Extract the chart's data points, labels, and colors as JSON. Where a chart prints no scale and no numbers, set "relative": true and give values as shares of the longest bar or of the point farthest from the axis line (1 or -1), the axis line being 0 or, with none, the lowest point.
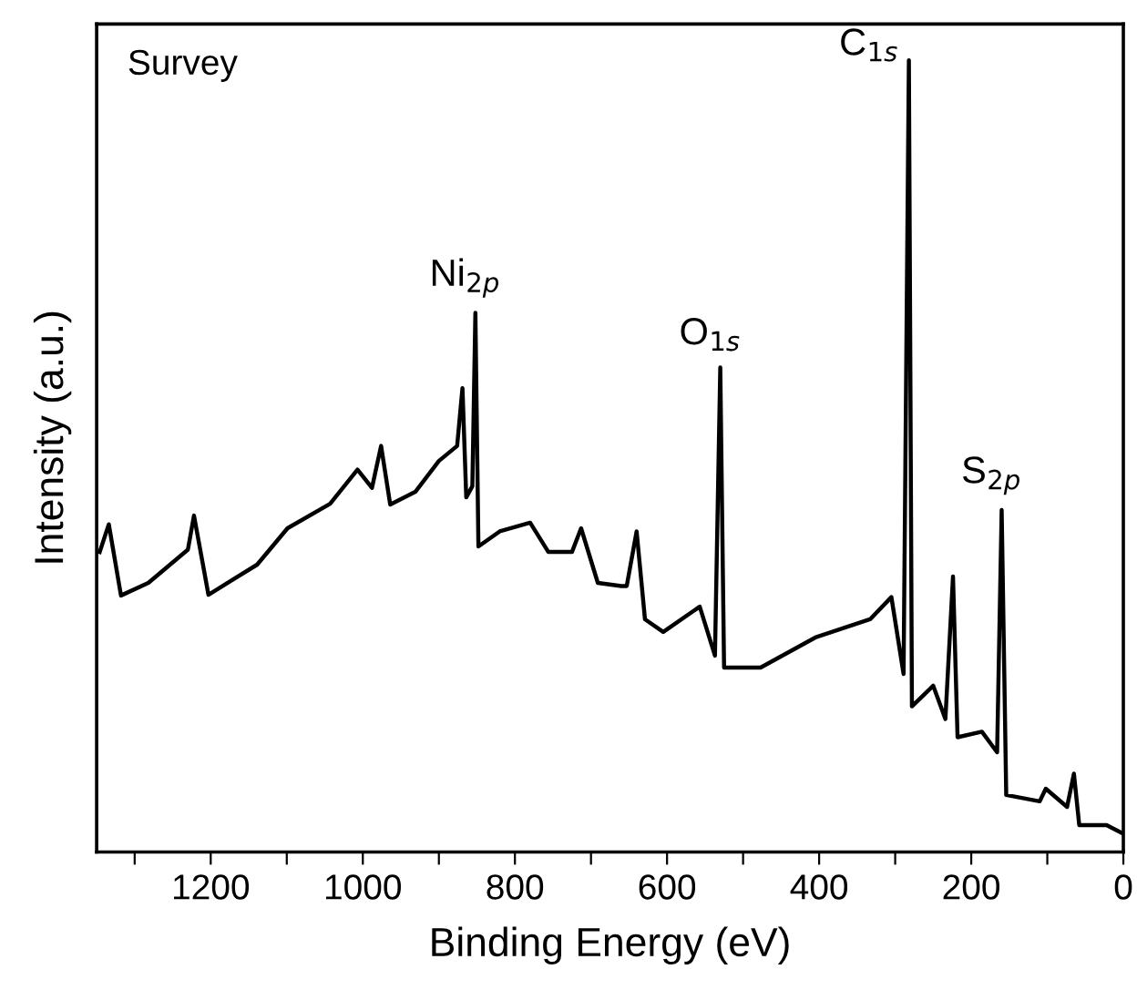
{
  "chart_data": {
    "type": "line",
    "relative": true,
    "xlabel": "Binding Energy (eV)",
    "ylabel": "Intensity (a.u.)",
    "xlim": [
      1350,
      0
    ],
    "xticks": [
      {
        "value": 1300,
        "label": null
      },
      1200,
      {
        "value": 1100,
        "label": null
      },
      1000,
      {
        "value": 900,
        "label": null
      },
      800,
      {
        "value": 700,
        "label": null
      },
      600,
      {
        "value": 500,
        "label": null
      },
      400,
      {
        "value": 300,
        "label": null
      },
      200,
      {
        "value": 100,
        "label": null
      },
      0
    ],
    "tick_labels": "x",
    "grid": false,
    "legend": false,
    "marker": "none",
    "line_style": "solid",
    "series": [
      {
        "color": "#000000",
        "x": [
          1346,
          1334,
          1318,
          1282,
          1230,
          1222,
          1203,
          1139,
          1099,
          1043,
          1007,
          988,
          976,
          964,
          931,
          900,
          876,
          869,
          864,
          856,
          852,
          848,
          820,
          780,
          756,
          725,
          713,
          691,
          660,
          653,
          640,
          629,
          605,
          557,
          537,
          530,
          525,
          477,
          405,
          333,
          305,
          289,
          282,
          278,
          250,
          234,
          224,
          218,
          186,
          166,
          160,
          154,
          110,
          102,
          74,
          65,
          58,
          22,
          0
        ],
        "values": [
          0.379,
          0.414,
          0.324,
          0.34,
          0.382,
          0.425,
          0.325,
          0.363,
          0.409,
          0.44,
          0.483,
          0.46,
          0.513,
          0.439,
          0.455,
          0.494,
          0.513,
          0.586,
          0.448,
          0.462,
          0.681,
          0.386,
          0.405,
          0.416,
          0.379,
          0.379,
          0.409,
          0.34,
          0.336,
          0.336,
          0.405,
          0.294,
          0.278,
          0.31,
          0.248,
          0.612,
          0.233,
          0.233,
          0.271,
          0.294,
          0.322,
          0.225,
          1.0,
          0.184,
          0.21,
          0.168,
          0.348,
          0.145,
          0.152,
          0.126,
          0.432,
          0.072,
          0.064,
          0.08,
          0.057,
          0.099,
          0.034,
          0.034,
          0.023
        ]
      }
    ],
    "annotations": [
      "Survey",
      {
        "text": "Ni$_{2p}$",
        "x": 852,
        "y": 0.681
      },
      {
        "text": "O$_{1s}$",
        "x": 530,
        "y": 0.612
      },
      {
        "text": "C$_{1s}$",
        "x": 282,
        "y": 1.0
      },
      {
        "text": "S$_{2p}$",
        "x": 160,
        "y": 0.432
      }
    ]
  }
}
